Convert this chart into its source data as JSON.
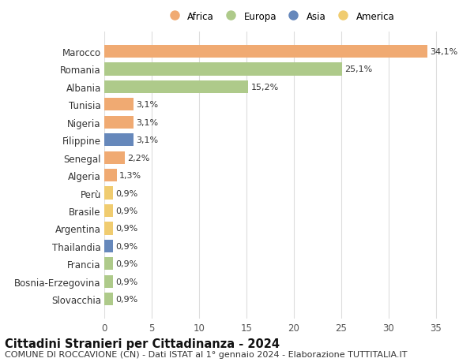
{
  "countries": [
    "Marocco",
    "Romania",
    "Albania",
    "Tunisia",
    "Nigeria",
    "Filippine",
    "Senegal",
    "Algeria",
    "Perù",
    "Brasile",
    "Argentina",
    "Thailandia",
    "Francia",
    "Bosnia-Erzegovina",
    "Slovacchia"
  ],
  "values": [
    34.1,
    25.1,
    15.2,
    3.1,
    3.1,
    3.1,
    2.2,
    1.3,
    0.9,
    0.9,
    0.9,
    0.9,
    0.9,
    0.9,
    0.9
  ],
  "labels": [
    "34,1%",
    "25,1%",
    "15,2%",
    "3,1%",
    "3,1%",
    "3,1%",
    "2,2%",
    "1,3%",
    "0,9%",
    "0,9%",
    "0,9%",
    "0,9%",
    "0,9%",
    "0,9%",
    "0,9%"
  ],
  "continents": [
    "Africa",
    "Europa",
    "Europa",
    "Africa",
    "Africa",
    "Asia",
    "Africa",
    "Africa",
    "America",
    "America",
    "America",
    "Asia",
    "Europa",
    "Europa",
    "Europa"
  ],
  "colors": {
    "Africa": "#F0AA72",
    "Europa": "#AECA8A",
    "Asia": "#6688BB",
    "America": "#F0CC70"
  },
  "legend_order": [
    "Africa",
    "Europa",
    "Asia",
    "America"
  ],
  "legend_colors": [
    "#F0AA72",
    "#AECA8A",
    "#6688BB",
    "#F0CC70"
  ],
  "title": "Cittadini Stranieri per Cittadinanza - 2024",
  "subtitle": "COMUNE DI ROCCAVIONE (CN) - Dati ISTAT al 1° gennaio 2024 - Elaborazione TUTTITALIA.IT",
  "xlim": [
    0,
    37
  ],
  "xticks": [
    0,
    5,
    10,
    15,
    20,
    25,
    30,
    35
  ],
  "background_color": "#ffffff",
  "grid_color": "#dddddd",
  "bar_height": 0.72,
  "title_fontsize": 10.5,
  "subtitle_fontsize": 8.0,
  "tick_fontsize": 8.5,
  "label_fontsize": 8.0,
  "legend_fontsize": 8.5
}
